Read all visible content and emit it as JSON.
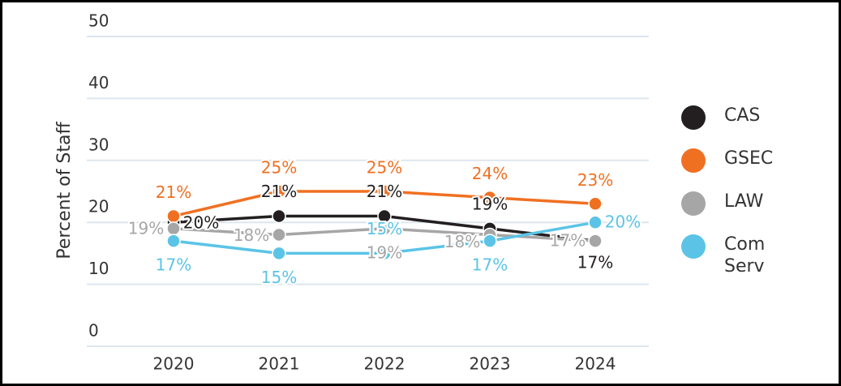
{
  "chart_data": {
    "type": "line",
    "y_label": "Percent of Staff",
    "categories": [
      "2020",
      "2021",
      "2022",
      "2023",
      "2024"
    ],
    "series": [
      {
        "name": "CAS",
        "color": "#231f20",
        "values": [
          20,
          21,
          21,
          19,
          17
        ],
        "value_labels": [
          "20%",
          "21%",
          "21%",
          "19%",
          "17%"
        ]
      },
      {
        "name": "GSEC",
        "color": "#f07022",
        "values": [
          21,
          25,
          25,
          24,
          23
        ],
        "value_labels": [
          "21%",
          "25%",
          "25%",
          "24%",
          "23%"
        ]
      },
      {
        "name": "LAW",
        "color": "#a6a6a6",
        "values": [
          19,
          18,
          19,
          18,
          17
        ],
        "value_labels": [
          "19%",
          "18%",
          "19%",
          "18%",
          "17%"
        ]
      },
      {
        "name": "Com Serv",
        "color": "#5bc4e6",
        "values": [
          17,
          15,
          15,
          17,
          20
        ],
        "value_labels": [
          "17%",
          "15%",
          "15%",
          "17%",
          "20%"
        ]
      }
    ],
    "ylim": [
      0,
      50
    ],
    "yticks": [
      0,
      10,
      20,
      30,
      40,
      50
    ],
    "grid": true,
    "legend": "right"
  }
}
